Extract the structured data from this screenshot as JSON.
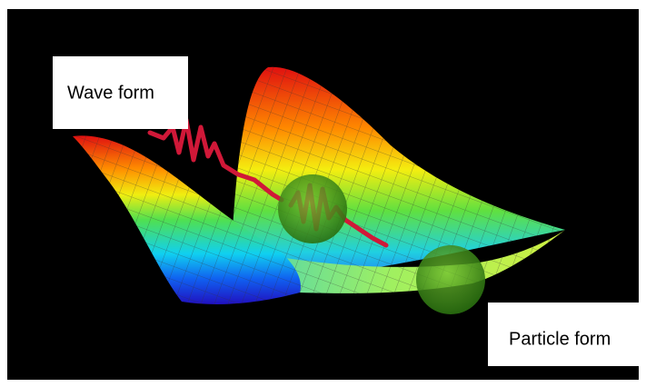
{
  "labels": {
    "wave": "Wave form",
    "particle": "Particle form"
  }
}
